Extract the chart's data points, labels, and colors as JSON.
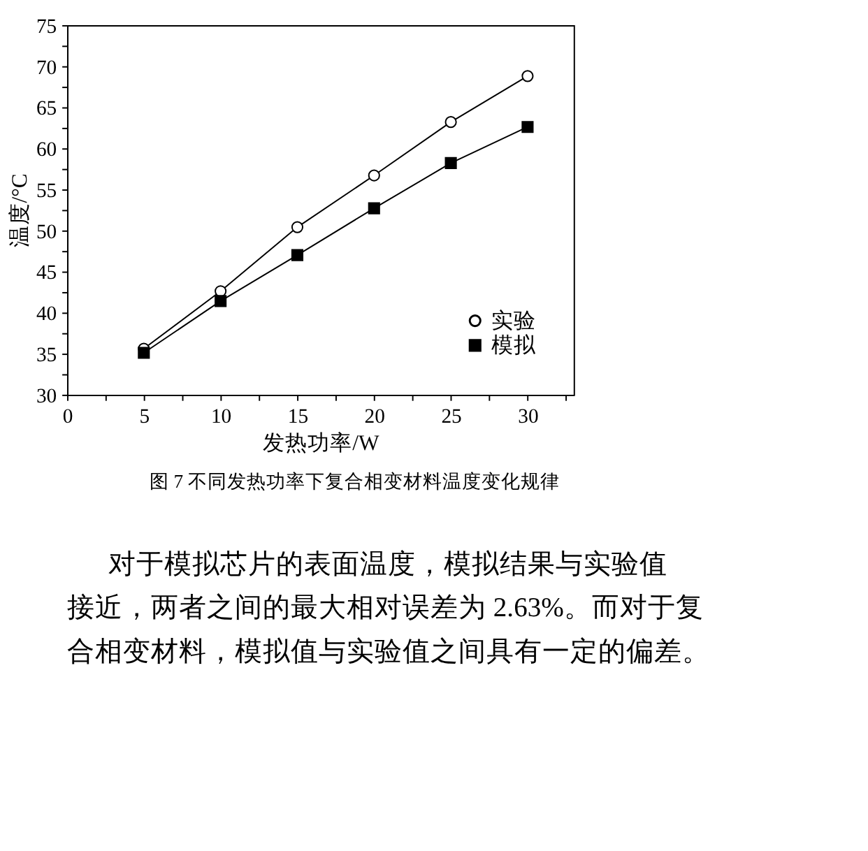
{
  "chart_data": {
    "type": "line",
    "xlabel": "发热功率/W",
    "ylabel": "温度/°C",
    "x": [
      5,
      10,
      15,
      20,
      25,
      30
    ],
    "series": [
      {
        "name": "实验",
        "color": "#000000",
        "marker": "circle",
        "values": [
          35.6,
          42.6,
          50.4,
          56.7,
          63.2,
          68.8
        ]
      },
      {
        "name": "模拟",
        "color": "#000000",
        "marker": "square",
        "values": [
          35.1,
          41.4,
          47.0,
          52.7,
          58.2,
          62.6
        ]
      }
    ],
    "xlim": [
      0,
      33
    ],
    "ylim": [
      30,
      75
    ],
    "xticks": [
      0,
      {
        "value": 2.5,
        "label": null
      },
      5,
      {
        "value": 7.5,
        "label": null
      },
      10,
      {
        "value": 12.5,
        "label": null
      },
      15,
      {
        "value": 17.5,
        "label": null
      },
      20,
      {
        "value": 22.5,
        "label": null
      },
      25,
      {
        "value": 27.5,
        "label": null
      },
      30,
      {
        "value": 32.5,
        "label": null
      }
    ],
    "yticks": [
      30,
      {
        "value": 32.5,
        "label": null
      },
      35,
      {
        "value": 37.5,
        "label": null
      },
      40,
      {
        "value": 42.5,
        "label": null
      },
      45,
      {
        "value": 47.5,
        "label": null
      },
      50,
      {
        "value": 52.5,
        "label": null
      },
      55,
      {
        "value": 57.5,
        "label": null
      },
      60,
      {
        "value": 62.5,
        "label": null
      },
      65,
      {
        "value": 67.5,
        "label": null
      },
      70,
      {
        "value": 72.5,
        "label": null
      },
      75
    ],
    "grid": false,
    "legend": "bottom right",
    "line_style": "solid",
    "annotations": [
      "图 7  不同发热功率下复合相变材料温度变化规律",
      "对于模拟芯片的表面温度，模拟结果与实验值",
      "接近，两者之间的最大相对误差为 2.63%。而对于复",
      "合相变材料，模拟值与实验值之间具有一定的偏差。"
    ]
  }
}
